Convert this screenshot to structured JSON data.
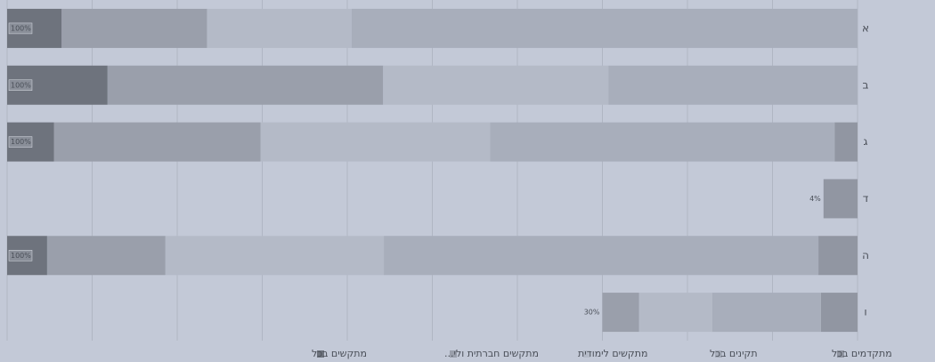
{
  "chart_data": {
    "type": "stacked-bar-horizontal",
    "categories": [
      "א",
      "ב",
      "ג",
      "ד",
      "ה",
      "ו"
    ],
    "series": [
      {
        "name": "מתקדמים בכל",
        "color": "#9196a2",
        "values": [
          0,
          0,
          2.7,
          4,
          4.6,
          4.3
        ]
      },
      {
        "name": "תקינים בכל",
        "color": "#a8aebb",
        "values": [
          59.5,
          29.3,
          40.5,
          0,
          51.1,
          12.8
        ]
      },
      {
        "name": "מתקשים לימודית",
        "color": "#b4bac7",
        "values": [
          17,
          26.5,
          27,
          0,
          25.7,
          8.6
        ]
      },
      {
        "name": "מתקשים חברתית ולי...",
        "color": "#9a9fab",
        "values": [
          17.1,
          32.4,
          24.3,
          0,
          13.9,
          4.3
        ]
      },
      {
        "name": "מתקשים בכל",
        "color": "#6e737d",
        "values": [
          6.4,
          11.8,
          5.5,
          0,
          4.7,
          0
        ]
      }
    ],
    "totals": [
      100,
      100,
      100,
      4,
      100,
      30
    ],
    "total_labels": [
      "100%",
      "100%",
      "100%",
      "4%",
      "100%",
      "30%"
    ],
    "xlim": [
      0,
      100
    ],
    "xticks": [
      0,
      10,
      20,
      30,
      40,
      50,
      60,
      70,
      80,
      90,
      100
    ],
    "x_reversed": true,
    "grid": true,
    "legend": "bottom"
  }
}
